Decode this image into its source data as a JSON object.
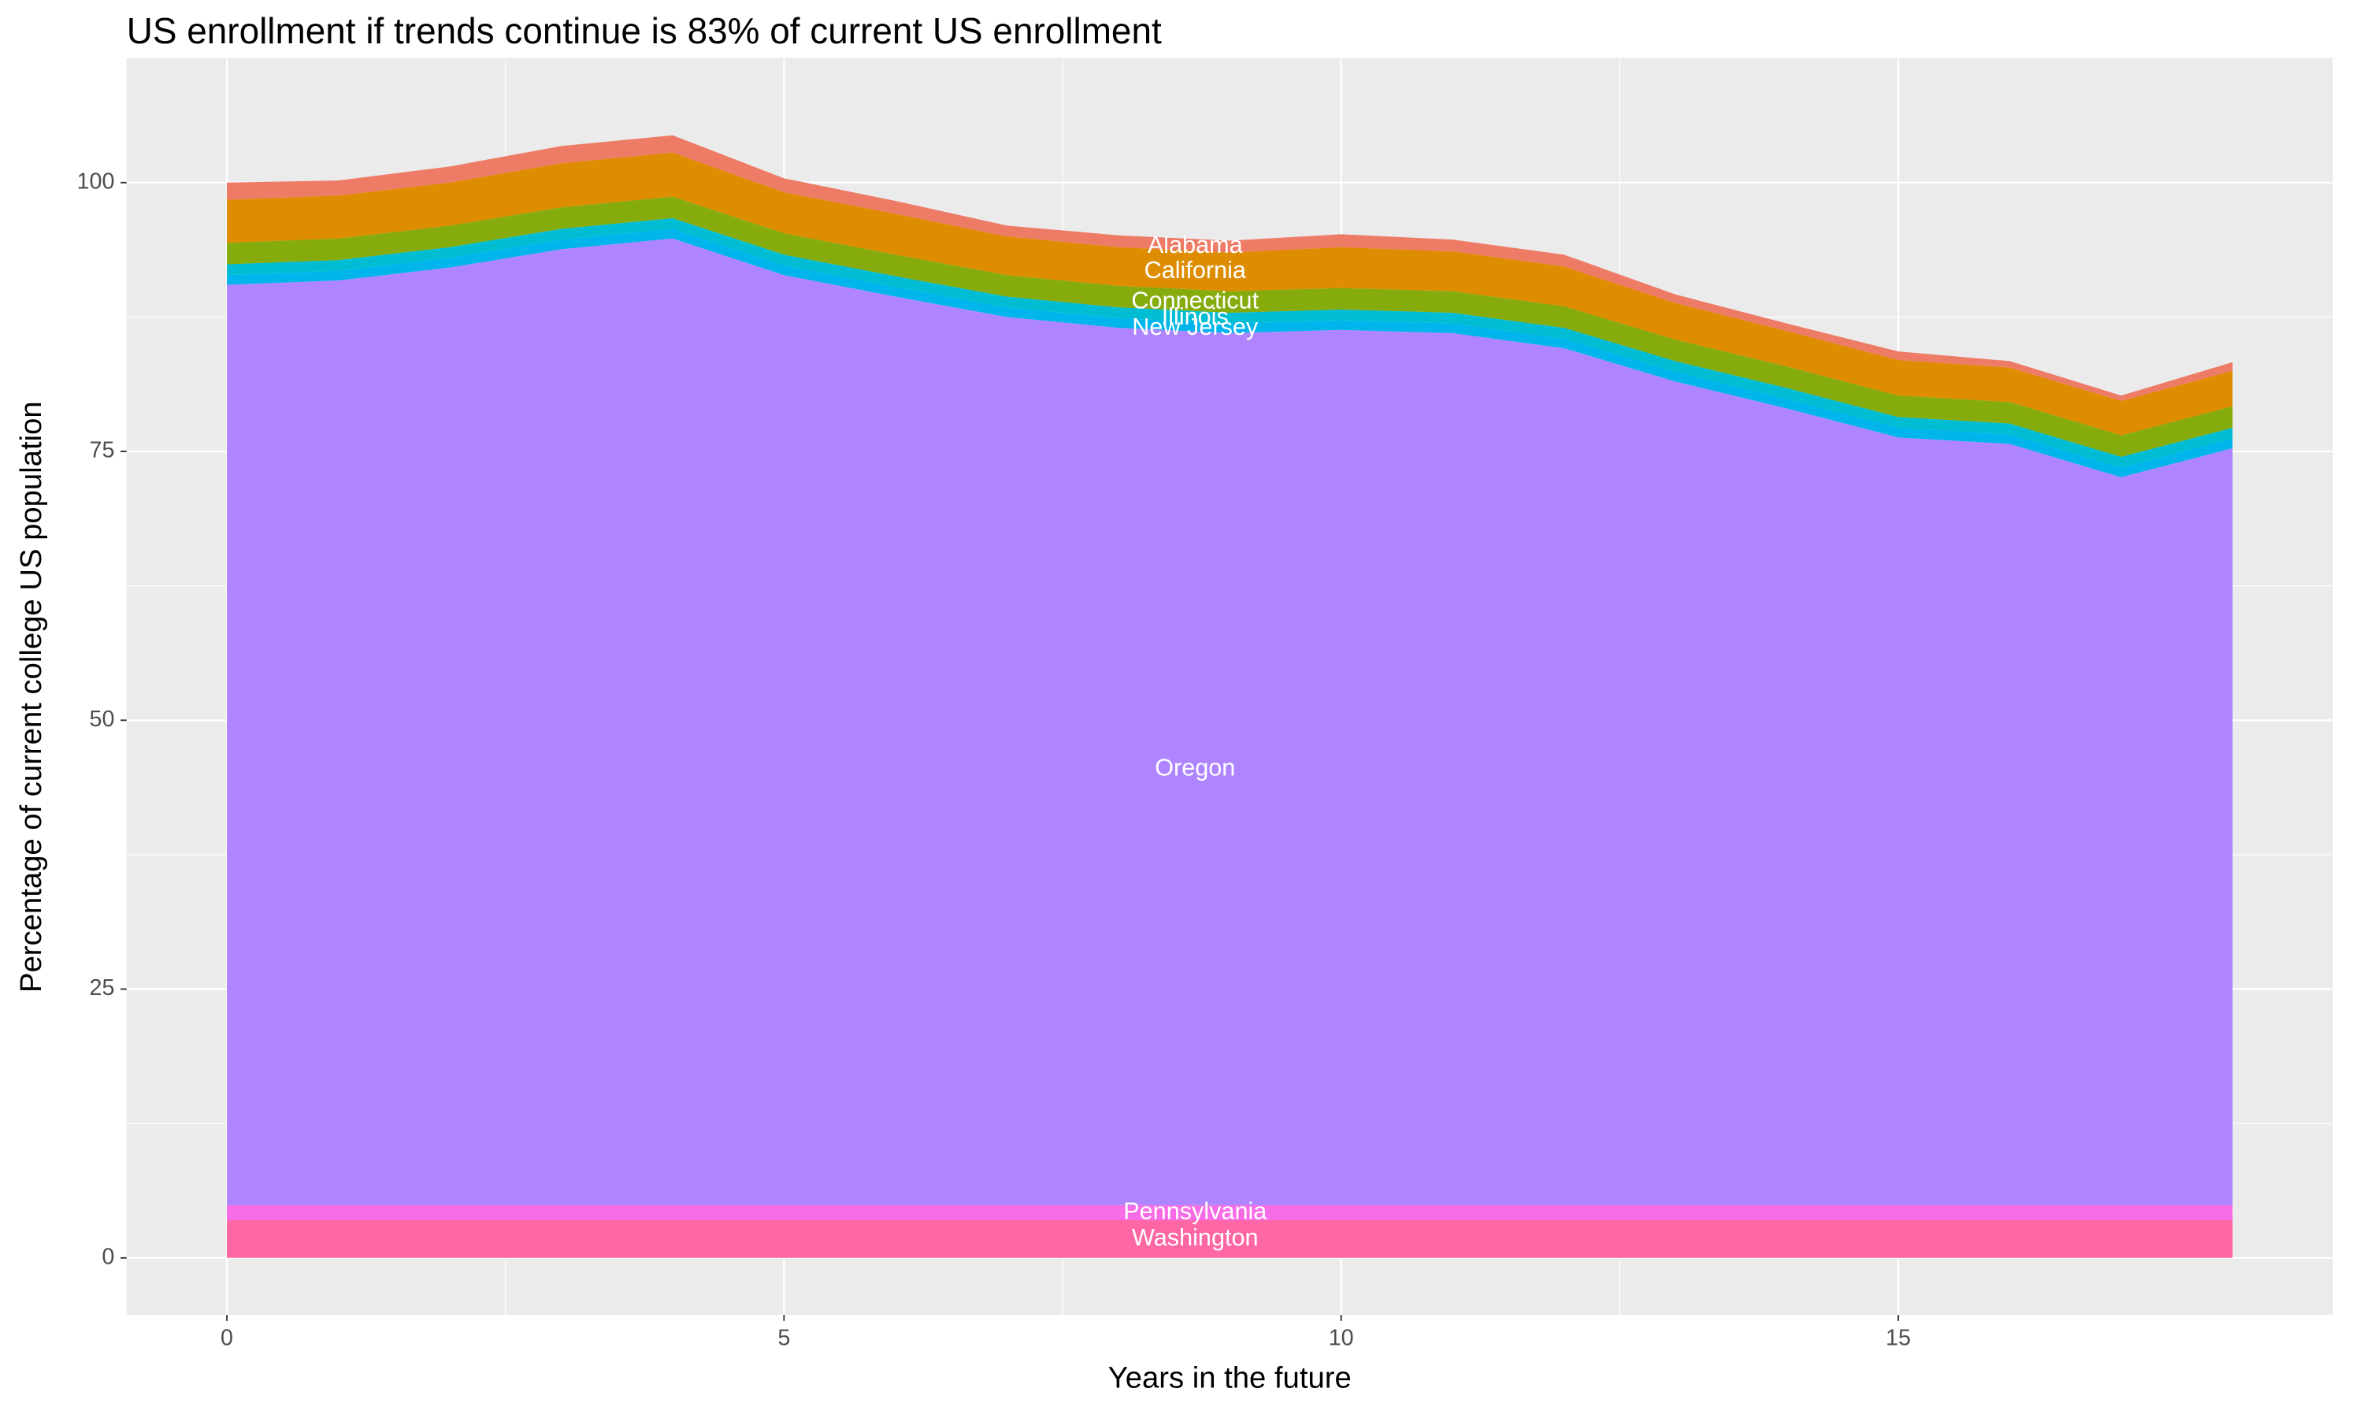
{
  "chart_data": {
    "type": "stacked_area",
    "title": "US enrollment if trends continue is 83% of current US enrollment",
    "xlabel": "Years in the future",
    "ylabel": "Percentage of current college US population",
    "x": [
      0,
      1,
      2,
      3,
      4,
      5,
      6,
      7,
      8,
      9,
      10,
      11,
      12,
      13,
      14,
      15,
      16,
      17,
      18
    ],
    "xlim": [
      -0.9,
      18.9
    ],
    "xticks": [
      0,
      5,
      10,
      15
    ],
    "ylim": [
      -5.3,
      111.6
    ],
    "yticks": [
      0,
      25,
      50,
      75,
      100
    ],
    "grid": true,
    "series": [
      {
        "name": "Washington",
        "color": "#FF67A4",
        "values": [
          3.5,
          3.5,
          3.5,
          3.5,
          3.5,
          3.5,
          3.5,
          3.5,
          3.5,
          3.5,
          3.5,
          3.5,
          3.5,
          3.5,
          3.5,
          3.5,
          3.5,
          3.5,
          3.5
        ]
      },
      {
        "name": "Pennsylvania",
        "color": "#F66BE6",
        "values": [
          1.4,
          1.4,
          1.4,
          1.4,
          1.4,
          1.4,
          1.4,
          1.4,
          1.4,
          1.4,
          1.4,
          1.4,
          1.4,
          1.4,
          1.4,
          1.4,
          1.4,
          1.4,
          1.4
        ]
      },
      {
        "name": "Oregon",
        "color": "#AF85FF",
        "values": [
          85.6,
          86.0,
          87.2,
          88.9,
          89.9,
          86.5,
          84.5,
          82.6,
          81.6,
          81.1,
          81.4,
          81.1,
          79.7,
          76.6,
          74.1,
          71.4,
          70.8,
          67.7,
          70.4
        ]
      },
      {
        "name": "New Jersey",
        "color": "#00B4EC",
        "values": [
          0.9,
          0.9,
          0.9,
          0.9,
          0.9,
          0.9,
          0.9,
          0.9,
          0.9,
          0.9,
          0.9,
          0.9,
          0.9,
          0.9,
          0.9,
          0.9,
          0.9,
          0.9,
          0.9
        ]
      },
      {
        "name": "Illinois",
        "color": "#00BDD3",
        "values": [
          1.0,
          1.0,
          1.0,
          1.0,
          1.0,
          1.0,
          1.0,
          1.0,
          1.0,
          1.0,
          1.0,
          1.0,
          1.0,
          1.0,
          1.0,
          1.0,
          1.0,
          1.0,
          1.0
        ]
      },
      {
        "name": "Connecticut",
        "color": "#86AB0C",
        "values": [
          2.0,
          2.0,
          2.0,
          2.0,
          2.0,
          2.0,
          2.0,
          2.0,
          2.0,
          2.0,
          2.0,
          2.0,
          2.0,
          2.0,
          2.0,
          2.0,
          2.0,
          2.0,
          2.0
        ]
      },
      {
        "name": "California",
        "color": "#DE8C00",
        "values": [
          4.0,
          4.0,
          4.0,
          4.1,
          4.1,
          3.8,
          3.8,
          3.6,
          3.6,
          3.6,
          3.8,
          3.7,
          3.7,
          3.4,
          3.3,
          3.3,
          3.2,
          3.2,
          3.3
        ]
      },
      {
        "name": "Alabama",
        "color": "#EE7B66",
        "values": [
          1.6,
          1.4,
          1.5,
          1.6,
          1.6,
          1.3,
          1.2,
          1.0,
          1.1,
          1.1,
          1.2,
          1.1,
          1.1,
          0.8,
          0.7,
          0.8,
          0.6,
          0.5,
          0.8
        ]
      }
    ]
  }
}
